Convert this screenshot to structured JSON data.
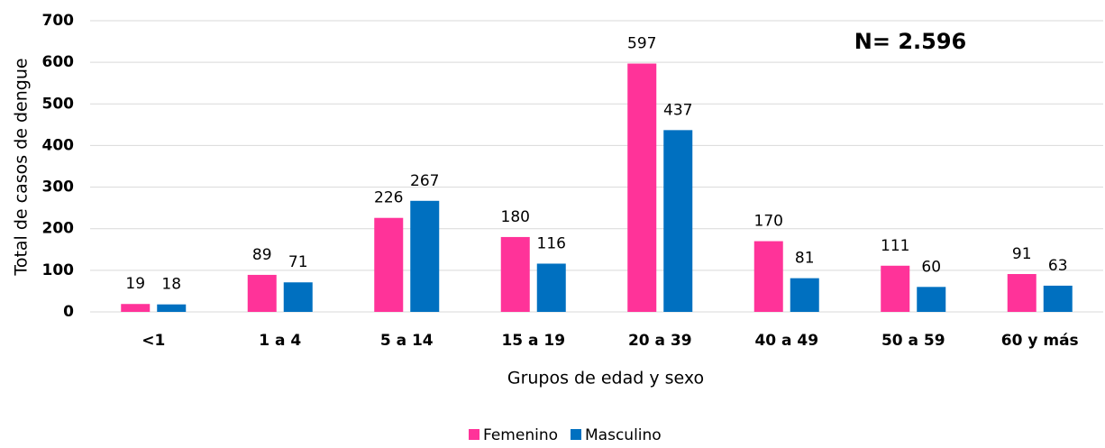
{
  "chart_data": {
    "type": "bar",
    "annotation": "N= 2.596",
    "xlabel": "Grupos de edad y sexo",
    "ylabel": "Total de casos de dengue",
    "categories": [
      "<1",
      "1 a 4",
      "5 a 14",
      "15 a 19",
      "20 a 39",
      "40 a 49",
      "50 a 59",
      "60 y más"
    ],
    "series": [
      {
        "name": "Femenino",
        "color": "#ff3399",
        "values": [
          19,
          89,
          226,
          180,
          597,
          170,
          111,
          91
        ]
      },
      {
        "name": "Masculino",
        "color": "#0070c0",
        "values": [
          18,
          71,
          267,
          116,
          437,
          81,
          60,
          63
        ]
      }
    ],
    "ylim": [
      0,
      700
    ],
    "yticks": [
      0,
      100,
      200,
      300,
      400,
      500,
      600,
      700
    ],
    "grid": true,
    "legend": "bottom"
  }
}
